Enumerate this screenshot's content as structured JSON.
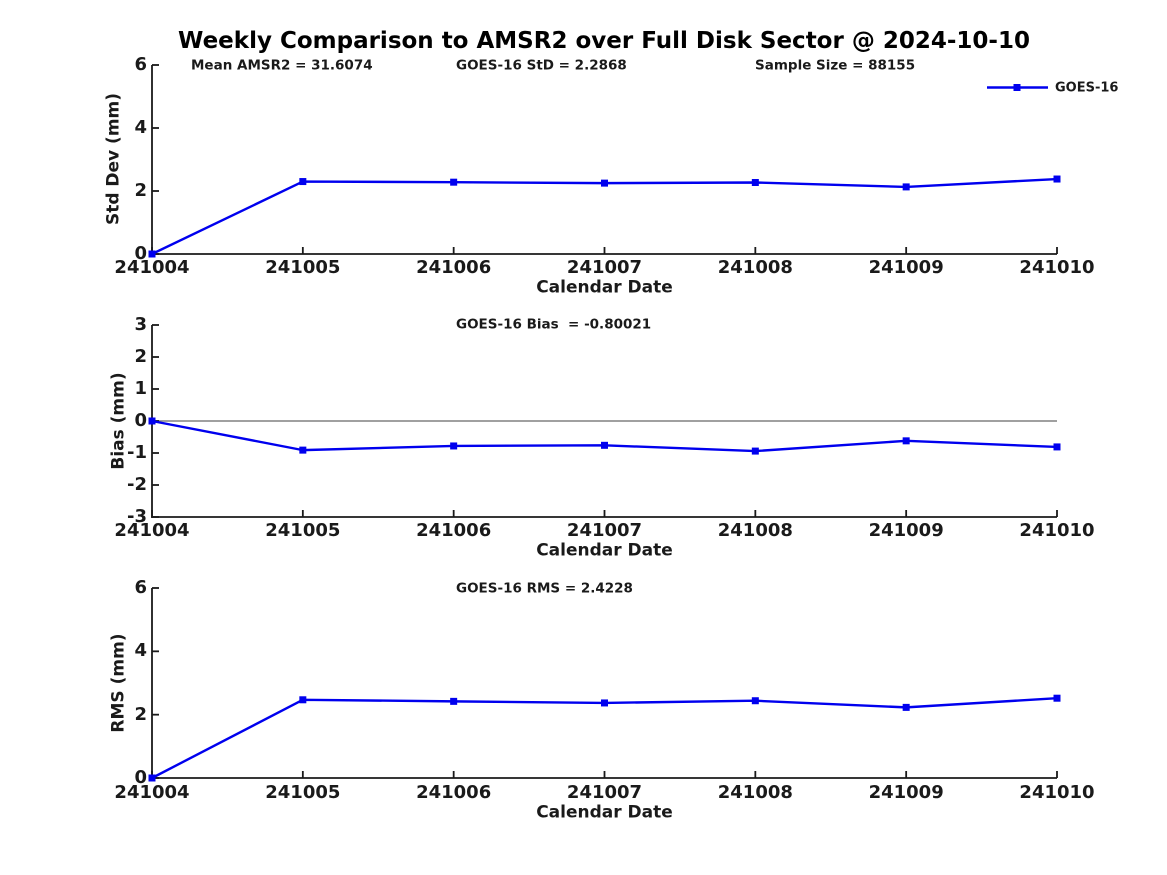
{
  "title": "Weekly Comparison to AMSR2 over Full Disk Sector @ 2024-10-10",
  "legend": {
    "label": "GOES-16",
    "position": "top-right"
  },
  "colors": {
    "series": "#0000EE",
    "zero_line": "#808080",
    "axis": "#1a1a1a",
    "text": "#1a1a1a",
    "background": "#ffffff"
  },
  "chart_data": [
    {
      "type": "line",
      "name": "std-dev-subplot",
      "ylabel": "Std Dev (mm)",
      "xlabel": "Calendar Date",
      "categories": [
        "241004",
        "241005",
        "241006",
        "241007",
        "241008",
        "241009",
        "241010"
      ],
      "series": [
        {
          "name": "GOES-16",
          "values": [
            0,
            2.3,
            2.28,
            2.25,
            2.27,
            2.13,
            2.38
          ]
        }
      ],
      "ylim": [
        0,
        6
      ],
      "yticks": [
        0,
        2,
        4,
        6
      ],
      "annotations": [
        "Mean AMSR2 = 31.6074",
        "GOES-16 StD = 2.2868",
        "Sample Size = 88155"
      ],
      "zero_line": false,
      "grid": false
    },
    {
      "type": "line",
      "name": "bias-subplot",
      "ylabel": "Bias (mm)",
      "xlabel": "Calendar Date",
      "categories": [
        "241004",
        "241005",
        "241006",
        "241007",
        "241008",
        "241009",
        "241010"
      ],
      "series": [
        {
          "name": "GOES-16",
          "values": [
            0,
            -0.91,
            -0.78,
            -0.76,
            -0.94,
            -0.62,
            -0.81
          ]
        }
      ],
      "ylim": [
        -3,
        3
      ],
      "yticks": [
        3,
        2,
        1,
        0,
        -1,
        -2,
        -3
      ],
      "annotations": [
        "GOES-16 Bias  = -0.80021"
      ],
      "zero_line": true,
      "grid": false
    },
    {
      "type": "line",
      "name": "rms-subplot",
      "ylabel": "RMS (mm)",
      "xlabel": "Calendar Date",
      "categories": [
        "241004",
        "241005",
        "241006",
        "241007",
        "241008",
        "241009",
        "241010"
      ],
      "series": [
        {
          "name": "GOES-16",
          "values": [
            0,
            2.47,
            2.42,
            2.37,
            2.44,
            2.23,
            2.52
          ]
        }
      ],
      "ylim": [
        0,
        6
      ],
      "yticks": [
        0,
        2,
        4,
        6
      ],
      "annotations": [
        "GOES-16 RMS = 2.4228"
      ],
      "zero_line": false,
      "grid": false
    }
  ]
}
